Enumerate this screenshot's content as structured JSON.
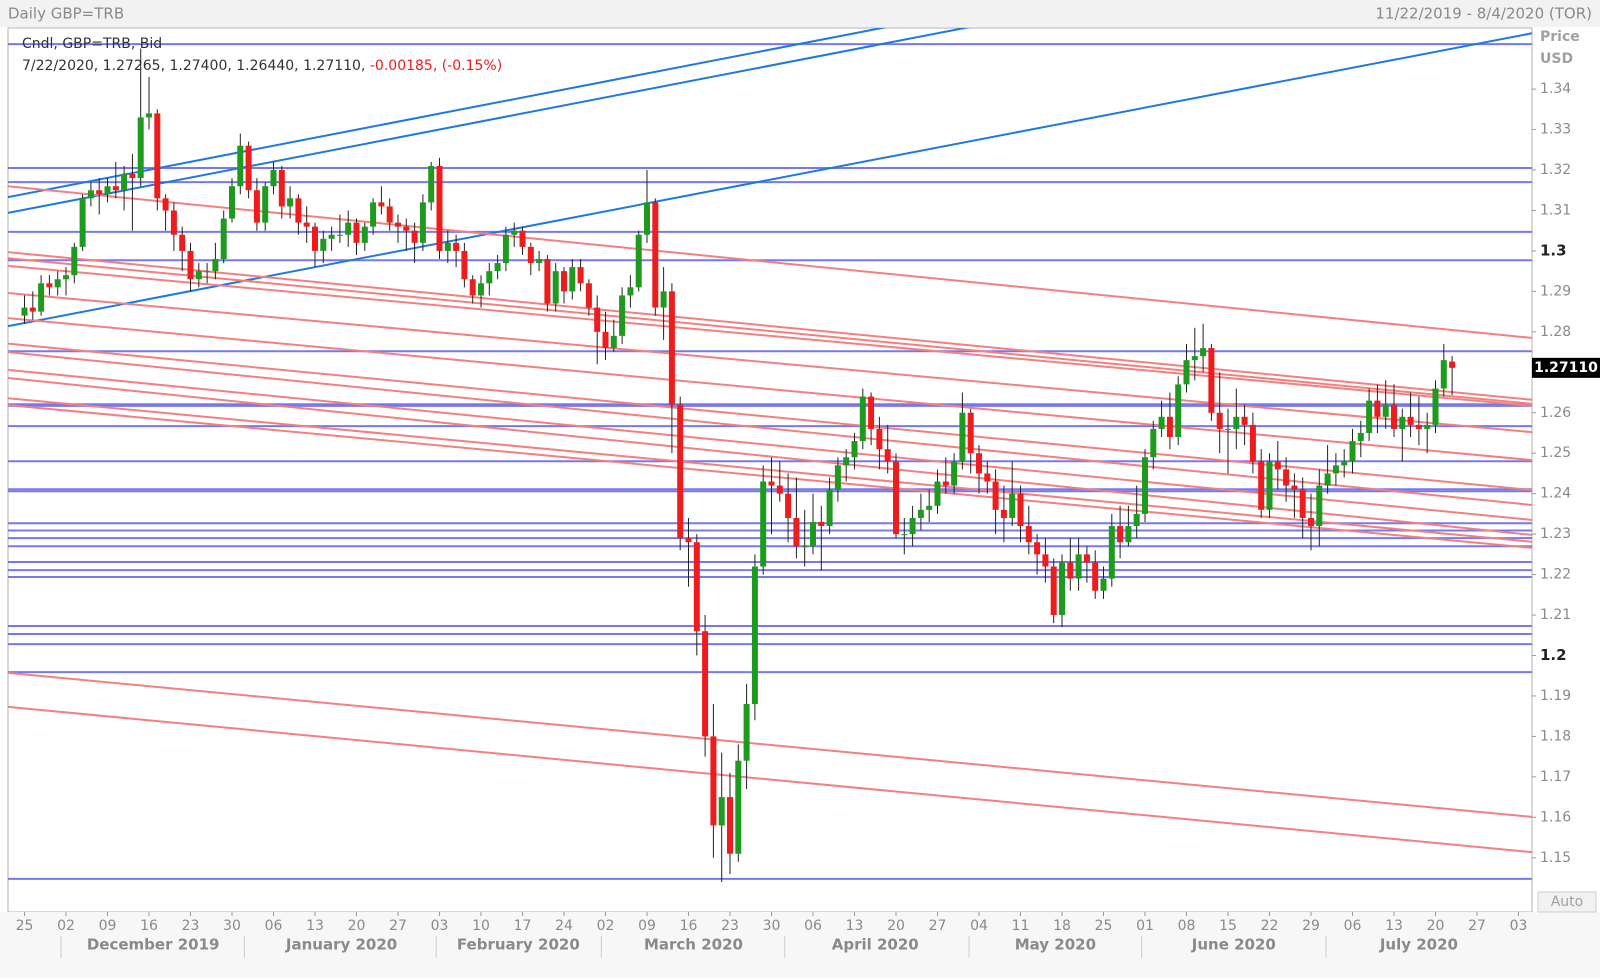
{
  "chart_data": {
    "type": "candlestick",
    "title": "Daily GBP=TRB",
    "range_label": "11/22/2019 - 8/4/2020 (TOR)",
    "legend_title": "Cndl, GBP=TRB, Bid",
    "legend_values": "7/22/2020, 1.27265, 1.27400, 1.26440, 1.27110,",
    "legend_change": "-0.00185, (-0.15%)",
    "y_label": "Price",
    "y_unit": "USD",
    "scale_mode": "Auto",
    "last_price": {
      "value": 1.2711,
      "label": "1.27110"
    },
    "up_color": "#1e9a1e",
    "down_color": "#ee1c1c",
    "hline_color": "#7878ee",
    "ylim": [
      1.1366,
      1.3551
    ],
    "yticks": [
      1.15,
      1.16,
      1.17,
      1.18,
      1.19,
      1.2,
      1.21,
      1.22,
      1.23,
      1.24,
      1.25,
      1.26,
      1.27,
      1.28,
      1.29,
      1.3,
      1.31,
      1.32,
      1.33,
      1.34
    ],
    "x": [
      "25",
      "02",
      "09",
      "16",
      "23",
      "30",
      "06",
      "13",
      "20",
      "27",
      "03",
      "10",
      "17",
      "24",
      "02",
      "09",
      "16",
      "23",
      "30",
      "06",
      "13",
      "20",
      "27",
      "04",
      "11",
      "18",
      "25",
      "01",
      "08",
      "15",
      "22",
      "29",
      "06",
      "13",
      "20",
      "27",
      "03"
    ],
    "months": [
      "December 2019",
      "January 2020",
      "February 2020",
      "March 2020",
      "April 2020",
      "May 2020",
      "June 2020",
      "July 2020"
    ],
    "hlines": [
      1.3511,
      1.3205,
      1.317,
      1.3047,
      1.2977,
      1.2752,
      1.2621,
      1.2617,
      1.2567,
      1.248,
      1.2411,
      1.2406,
      1.2327,
      1.2309,
      1.229,
      1.227,
      1.2231,
      1.2211,
      1.2194,
      1.2073,
      1.2053,
      1.2028,
      1.1959,
      1.1448
    ],
    "trendlines": [
      {
        "from": 1.3133,
        "to": 1.3862,
        "color": "#1f78e0"
      },
      {
        "from": 1.3094,
        "to": 1.3822,
        "color": "#1f78e0"
      },
      {
        "from": 1.2814,
        "to": 1.3538,
        "color": "#1f78e0"
      },
      {
        "from": 1.316,
        "to": 1.2785,
        "color": "#f28080"
      },
      {
        "from": 1.2997,
        "to": 1.2632,
        "color": "#f28080"
      },
      {
        "from": 1.2982,
        "to": 1.2622,
        "color": "#f28080"
      },
      {
        "from": 1.2963,
        "to": 1.2617,
        "color": "#f28080"
      },
      {
        "from": 1.2896,
        "to": 1.2552,
        "color": "#f28080"
      },
      {
        "from": 1.2834,
        "to": 1.2483,
        "color": "#f28080"
      },
      {
        "from": 1.2771,
        "to": 1.2409,
        "color": "#f28080"
      },
      {
        "from": 1.275,
        "to": 1.2372,
        "color": "#f28080"
      },
      {
        "from": 1.2706,
        "to": 1.2335,
        "color": "#f28080"
      },
      {
        "from": 1.2686,
        "to": 1.2298,
        "color": "#f28080"
      },
      {
        "from": 1.2636,
        "to": 1.2281,
        "color": "#f28080"
      },
      {
        "from": 1.2619,
        "to": 1.2266,
        "color": "#f28080"
      },
      {
        "from": 1.1957,
        "to": 1.1601,
        "color": "#f28080"
      },
      {
        "from": 1.1873,
        "to": 1.1514,
        "color": "#f28080"
      }
    ],
    "candles": [
      [
        1.284,
        1.289,
        1.282,
        1.286
      ],
      [
        1.286,
        1.29,
        1.283,
        1.285
      ],
      [
        1.285,
        1.294,
        1.284,
        1.292
      ],
      [
        1.292,
        1.294,
        1.289,
        1.291
      ],
      [
        1.291,
        1.295,
        1.289,
        1.293
      ],
      [
        1.293,
        1.296,
        1.289,
        1.294
      ],
      [
        1.294,
        1.302,
        1.292,
        1.301
      ],
      [
        1.301,
        1.314,
        1.3,
        1.313
      ],
      [
        1.313,
        1.317,
        1.311,
        1.315
      ],
      [
        1.315,
        1.318,
        1.309,
        1.314
      ],
      [
        1.314,
        1.318,
        1.312,
        1.316
      ],
      [
        1.316,
        1.322,
        1.313,
        1.315
      ],
      [
        1.315,
        1.321,
        1.31,
        1.319
      ],
      [
        1.319,
        1.324,
        1.305,
        1.318
      ],
      [
        1.318,
        1.35,
        1.316,
        1.333
      ],
      [
        1.333,
        1.343,
        1.33,
        1.334
      ],
      [
        1.334,
        1.335,
        1.31,
        1.313
      ],
      [
        1.313,
        1.314,
        1.305,
        1.31
      ],
      [
        1.31,
        1.312,
        1.3,
        1.304
      ],
      [
        1.304,
        1.306,
        1.295,
        1.3
      ],
      [
        1.3,
        1.302,
        1.29,
        1.293
      ],
      [
        1.293,
        1.297,
        1.291,
        1.295
      ],
      [
        1.295,
        1.297,
        1.292,
        1.295
      ],
      [
        1.295,
        1.302,
        1.293,
        1.298
      ],
      [
        1.298,
        1.31,
        1.297,
        1.308
      ],
      [
        1.308,
        1.318,
        1.307,
        1.316
      ],
      [
        1.316,
        1.329,
        1.314,
        1.326
      ],
      [
        1.326,
        1.327,
        1.313,
        1.315
      ],
      [
        1.315,
        1.318,
        1.305,
        1.307
      ],
      [
        1.307,
        1.317,
        1.305,
        1.316
      ],
      [
        1.316,
        1.322,
        1.314,
        1.32
      ],
      [
        1.32,
        1.321,
        1.308,
        1.311
      ],
      [
        1.311,
        1.316,
        1.308,
        1.313
      ],
      [
        1.313,
        1.314,
        1.304,
        1.307
      ],
      [
        1.307,
        1.311,
        1.302,
        1.306
      ],
      [
        1.306,
        1.307,
        1.296,
        1.3
      ],
      [
        1.3,
        1.305,
        1.297,
        1.303
      ],
      [
        1.303,
        1.306,
        1.3,
        1.304
      ],
      [
        1.304,
        1.309,
        1.302,
        1.304
      ],
      [
        1.304,
        1.31,
        1.301,
        1.307
      ],
      [
        1.307,
        1.308,
        1.299,
        1.302
      ],
      [
        1.302,
        1.307,
        1.3,
        1.306
      ],
      [
        1.306,
        1.313,
        1.304,
        1.312
      ],
      [
        1.312,
        1.316,
        1.309,
        1.311
      ],
      [
        1.311,
        1.313,
        1.305,
        1.307
      ],
      [
        1.307,
        1.309,
        1.302,
        1.306
      ],
      [
        1.306,
        1.308,
        1.3,
        1.305
      ],
      [
        1.305,
        1.307,
        1.297,
        1.302
      ],
      [
        1.302,
        1.314,
        1.3,
        1.312
      ],
      [
        1.312,
        1.322,
        1.31,
        1.321
      ],
      [
        1.321,
        1.323,
        1.298,
        1.3
      ],
      [
        1.3,
        1.305,
        1.297,
        1.302
      ],
      [
        1.302,
        1.304,
        1.296,
        1.3
      ],
      [
        1.3,
        1.302,
        1.291,
        1.293
      ],
      [
        1.293,
        1.294,
        1.287,
        1.289
      ],
      [
        1.289,
        1.294,
        1.286,
        1.292
      ],
      [
        1.292,
        1.297,
        1.289,
        1.295
      ],
      [
        1.295,
        1.299,
        1.293,
        1.297
      ],
      [
        1.297,
        1.306,
        1.295,
        1.304
      ],
      [
        1.304,
        1.307,
        1.301,
        1.305
      ],
      [
        1.305,
        1.306,
        1.299,
        1.301
      ],
      [
        1.301,
        1.302,
        1.294,
        1.297
      ],
      [
        1.297,
        1.3,
        1.295,
        1.298
      ],
      [
        1.298,
        1.299,
        1.285,
        1.287
      ],
      [
        1.287,
        1.297,
        1.285,
        1.295
      ],
      [
        1.295,
        1.296,
        1.287,
        1.29
      ],
      [
        1.29,
        1.298,
        1.288,
        1.296
      ],
      [
        1.296,
        1.298,
        1.29,
        1.292
      ],
      [
        1.292,
        1.293,
        1.284,
        1.286
      ],
      [
        1.286,
        1.289,
        1.272,
        1.28
      ],
      [
        1.28,
        1.285,
        1.273,
        1.276
      ],
      [
        1.276,
        1.283,
        1.275,
        1.279
      ],
      [
        1.279,
        1.291,
        1.277,
        1.289
      ],
      [
        1.289,
        1.294,
        1.286,
        1.291
      ],
      [
        1.291,
        1.305,
        1.29,
        1.304
      ],
      [
        1.304,
        1.32,
        1.302,
        1.312
      ],
      [
        1.312,
        1.313,
        1.284,
        1.286
      ],
      [
        1.286,
        1.296,
        1.278,
        1.29
      ],
      [
        1.29,
        1.292,
        1.25,
        1.262
      ],
      [
        1.262,
        1.264,
        1.226,
        1.229
      ],
      [
        1.229,
        1.234,
        1.217,
        1.228
      ],
      [
        1.228,
        1.23,
        1.2,
        1.206
      ],
      [
        1.206,
        1.21,
        1.175,
        1.18
      ],
      [
        1.18,
        1.188,
        1.15,
        1.158
      ],
      [
        1.158,
        1.176,
        1.144,
        1.165
      ],
      [
        1.165,
        1.171,
        1.146,
        1.151
      ],
      [
        1.151,
        1.178,
        1.149,
        1.174
      ],
      [
        1.174,
        1.193,
        1.167,
        1.188
      ],
      [
        1.188,
        1.225,
        1.184,
        1.222
      ],
      [
        1.222,
        1.247,
        1.22,
        1.243
      ],
      [
        1.243,
        1.249,
        1.23,
        1.242
      ],
      [
        1.242,
        1.248,
        1.238,
        1.24
      ],
      [
        1.24,
        1.245,
        1.228,
        1.234
      ],
      [
        1.234,
        1.244,
        1.224,
        1.227
      ],
      [
        1.227,
        1.236,
        1.222,
        1.227
      ],
      [
        1.227,
        1.24,
        1.225,
        1.233
      ],
      [
        1.233,
        1.237,
        1.221,
        1.232
      ],
      [
        1.232,
        1.244,
        1.23,
        1.241
      ],
      [
        1.241,
        1.249,
        1.238,
        1.247
      ],
      [
        1.247,
        1.251,
        1.243,
        1.249
      ],
      [
        1.249,
        1.255,
        1.246,
        1.253
      ],
      [
        1.253,
        1.266,
        1.251,
        1.264
      ],
      [
        1.264,
        1.265,
        1.252,
        1.256
      ],
      [
        1.256,
        1.259,
        1.246,
        1.251
      ],
      [
        1.251,
        1.257,
        1.245,
        1.248
      ],
      [
        1.248,
        1.25,
        1.229,
        1.23
      ],
      [
        1.23,
        1.234,
        1.225,
        1.23
      ],
      [
        1.23,
        1.237,
        1.227,
        1.234
      ],
      [
        1.234,
        1.24,
        1.231,
        1.236
      ],
      [
        1.236,
        1.241,
        1.233,
        1.237
      ],
      [
        1.237,
        1.246,
        1.235,
        1.243
      ],
      [
        1.243,
        1.249,
        1.24,
        1.242
      ],
      [
        1.242,
        1.25,
        1.24,
        1.248
      ],
      [
        1.248,
        1.265,
        1.246,
        1.26
      ],
      [
        1.26,
        1.261,
        1.245,
        1.25
      ],
      [
        1.25,
        1.252,
        1.24,
        1.245
      ],
      [
        1.245,
        1.248,
        1.24,
        1.243
      ],
      [
        1.243,
        1.246,
        1.23,
        1.236
      ],
      [
        1.236,
        1.242,
        1.228,
        1.234
      ],
      [
        1.234,
        1.248,
        1.232,
        1.24
      ],
      [
        1.24,
        1.242,
        1.228,
        1.232
      ],
      [
        1.232,
        1.237,
        1.225,
        1.228
      ],
      [
        1.228,
        1.23,
        1.22,
        1.225
      ],
      [
        1.225,
        1.229,
        1.218,
        1.222
      ],
      [
        1.222,
        1.224,
        1.208,
        1.21
      ],
      [
        1.21,
        1.225,
        1.207,
        1.223
      ],
      [
        1.223,
        1.229,
        1.216,
        1.219
      ],
      [
        1.219,
        1.229,
        1.216,
        1.225
      ],
      [
        1.225,
        1.227,
        1.218,
        1.223
      ],
      [
        1.223,
        1.226,
        1.214,
        1.216
      ],
      [
        1.216,
        1.222,
        1.214,
        1.219
      ],
      [
        1.219,
        1.235,
        1.217,
        1.232
      ],
      [
        1.232,
        1.237,
        1.224,
        1.228
      ],
      [
        1.228,
        1.237,
        1.227,
        1.232
      ],
      [
        1.232,
        1.242,
        1.229,
        1.235
      ],
      [
        1.235,
        1.251,
        1.233,
        1.249
      ],
      [
        1.249,
        1.258,
        1.246,
        1.256
      ],
      [
        1.256,
        1.263,
        1.254,
        1.259
      ],
      [
        1.259,
        1.265,
        1.251,
        1.254
      ],
      [
        1.254,
        1.269,
        1.252,
        1.267
      ],
      [
        1.267,
        1.277,
        1.265,
        1.273
      ],
      [
        1.273,
        1.281,
        1.268,
        1.274
      ],
      [
        1.274,
        1.282,
        1.27,
        1.276
      ],
      [
        1.276,
        1.277,
        1.258,
        1.26
      ],
      [
        1.26,
        1.27,
        1.25,
        1.256
      ],
      [
        1.256,
        1.261,
        1.245,
        1.256
      ],
      [
        1.256,
        1.266,
        1.251,
        1.259
      ],
      [
        1.259,
        1.262,
        1.252,
        1.257
      ],
      [
        1.257,
        1.26,
        1.245,
        1.248
      ],
      [
        1.248,
        1.251,
        1.234,
        1.236
      ],
      [
        1.236,
        1.25,
        1.234,
        1.248
      ],
      [
        1.248,
        1.253,
        1.241,
        1.246
      ],
      [
        1.246,
        1.249,
        1.238,
        1.242
      ],
      [
        1.242,
        1.245,
        1.234,
        1.241
      ],
      [
        1.241,
        1.244,
        1.229,
        1.234
      ],
      [
        1.234,
        1.24,
        1.226,
        1.232
      ],
      [
        1.232,
        1.246,
        1.227,
        1.242
      ],
      [
        1.242,
        1.252,
        1.24,
        1.245
      ],
      [
        1.245,
        1.25,
        1.242,
        1.247
      ],
      [
        1.247,
        1.251,
        1.244,
        1.248
      ],
      [
        1.248,
        1.256,
        1.245,
        1.253
      ],
      [
        1.253,
        1.258,
        1.249,
        1.255
      ],
      [
        1.255,
        1.266,
        1.253,
        1.263
      ],
      [
        1.263,
        1.267,
        1.255,
        1.259
      ],
      [
        1.259,
        1.268,
        1.256,
        1.262
      ],
      [
        1.262,
        1.267,
        1.254,
        1.256
      ],
      [
        1.256,
        1.261,
        1.248,
        1.259
      ],
      [
        1.259,
        1.265,
        1.254,
        1.257
      ],
      [
        1.257,
        1.264,
        1.252,
        1.256
      ],
      [
        1.256,
        1.26,
        1.25,
        1.257
      ],
      [
        1.257,
        1.268,
        1.255,
        1.266
      ],
      [
        1.266,
        1.277,
        1.264,
        1.273
      ],
      [
        1.27265,
        1.274,
        1.2644,
        1.2711
      ]
    ]
  }
}
